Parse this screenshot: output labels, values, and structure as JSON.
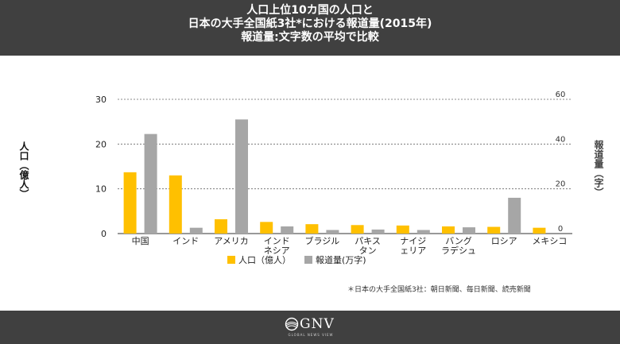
{
  "header": {
    "line1": "人口上位10カ国の人口と",
    "line2": "日本の大手全国紙3社*における報道量(2015年)",
    "line3": "報道量:文字数の平均で比較"
  },
  "chart_data": {
    "type": "bar",
    "categories": [
      "中国",
      "インド",
      "アメリカ",
      "インド\nネシア",
      "ブラジル",
      "パキス\nタン",
      "ナイジ\nェリア",
      "バング\nラデシュ",
      "ロシア",
      "メキシコ"
    ],
    "series": [
      {
        "name": "人口（億人）",
        "axis": "left",
        "color": "#FFC000",
        "values": [
          13.7,
          13.0,
          3.2,
          2.6,
          2.1,
          1.9,
          1.8,
          1.6,
          1.5,
          1.3
        ]
      },
      {
        "name": "報道量(万字)",
        "axis": "right",
        "color": "#A6A6A6",
        "values": [
          44.5,
          2.6,
          51,
          3.2,
          1.6,
          1.8,
          1.6,
          2.8,
          16,
          0
        ]
      }
    ],
    "ylabel_left": "人口（億人）",
    "ylabel_right": "報道量（字）",
    "ylim_left": [
      0,
      30
    ],
    "ylim_right": [
      0,
      60
    ],
    "yticks_left": [
      0,
      10,
      20,
      30
    ],
    "yticks_right": [
      0,
      20,
      40,
      60
    ],
    "legend_position": "bottom",
    "grid": "dashed-horizontal"
  },
  "note": "＊日本の大手全国紙3社：朝日新聞、毎日新聞、読売新聞",
  "footer": {
    "logo_text": "GNV",
    "logo_sub": "GLOBAL NEWS VIEW"
  },
  "colors": {
    "header_bg": "#404040",
    "footer_bg": "#404040",
    "population": "#FFC000",
    "coverage": "#A6A6A6"
  }
}
